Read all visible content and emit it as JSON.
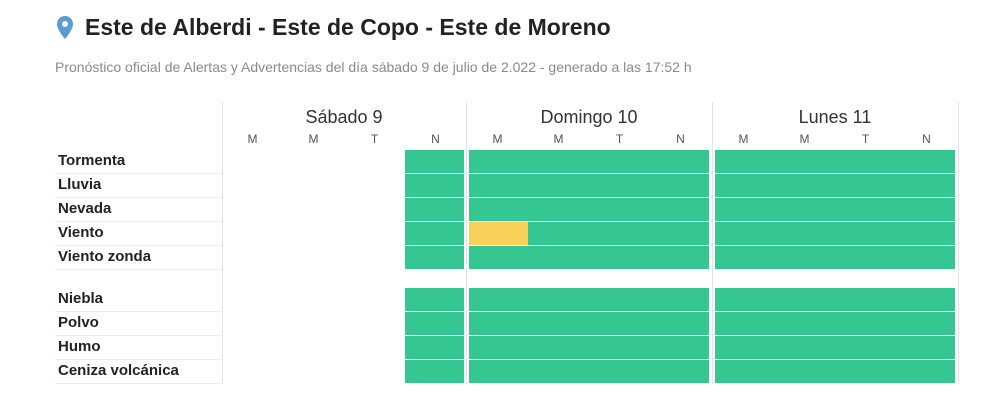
{
  "header": {
    "title": "Este de Alberdi - Este de Copo - Este de Moreno",
    "subtitle": "Pronóstico oficial de Alertas y Advertencias del día sábado 9 de julio de 2.022 - generado a las 17:52 h",
    "pin_icon": "location-pin-icon"
  },
  "colors": {
    "sin_alerta": "#36c692",
    "amarilla": "#f8cf59",
    "pin": "#5b9bd5"
  },
  "days": [
    {
      "label": "Sábado 9",
      "slots": [
        "M",
        "M",
        "T",
        "N"
      ]
    },
    {
      "label": "Domingo 10",
      "slots": [
        "M",
        "M",
        "T",
        "N"
      ]
    },
    {
      "label": "Lunes 11",
      "slots": [
        "M",
        "M",
        "T",
        "N"
      ]
    }
  ],
  "rows": [
    {
      "label": "Tormenta",
      "cells": [
        "",
        "",
        "",
        "verde",
        "verde",
        "verde",
        "verde",
        "verde",
        "verde",
        "verde",
        "verde",
        "verde"
      ]
    },
    {
      "label": "Lluvia",
      "cells": [
        "",
        "",
        "",
        "verde",
        "verde",
        "verde",
        "verde",
        "verde",
        "verde",
        "verde",
        "verde",
        "verde"
      ]
    },
    {
      "label": "Nevada",
      "cells": [
        "",
        "",
        "",
        "verde",
        "verde",
        "verde",
        "verde",
        "verde",
        "verde",
        "verde",
        "verde",
        "verde"
      ]
    },
    {
      "label": "Viento",
      "cells": [
        "",
        "",
        "",
        "verde",
        "amarilla",
        "verde",
        "verde",
        "verde",
        "verde",
        "verde",
        "verde",
        "verde"
      ]
    },
    {
      "label": "Viento zonda",
      "cells": [
        "",
        "",
        "",
        "verde",
        "verde",
        "verde",
        "verde",
        "verde",
        "verde",
        "verde",
        "verde",
        "verde"
      ]
    },
    {
      "label": "Niebla",
      "cells": [
        "",
        "",
        "",
        "verde",
        "verde",
        "verde",
        "verde",
        "verde",
        "verde",
        "verde",
        "verde",
        "verde"
      ]
    },
    {
      "label": "Polvo",
      "cells": [
        "",
        "",
        "",
        "verde",
        "verde",
        "verde",
        "verde",
        "verde",
        "verde",
        "verde",
        "verde",
        "verde"
      ]
    },
    {
      "label": "Humo",
      "cells": [
        "",
        "",
        "",
        "verde",
        "verde",
        "verde",
        "verde",
        "verde",
        "verde",
        "verde",
        "verde",
        "verde"
      ]
    },
    {
      "label": "Ceniza volcánica",
      "cells": [
        "",
        "",
        "",
        "verde",
        "verde",
        "verde",
        "verde",
        "verde",
        "verde",
        "verde",
        "verde",
        "verde"
      ]
    }
  ]
}
